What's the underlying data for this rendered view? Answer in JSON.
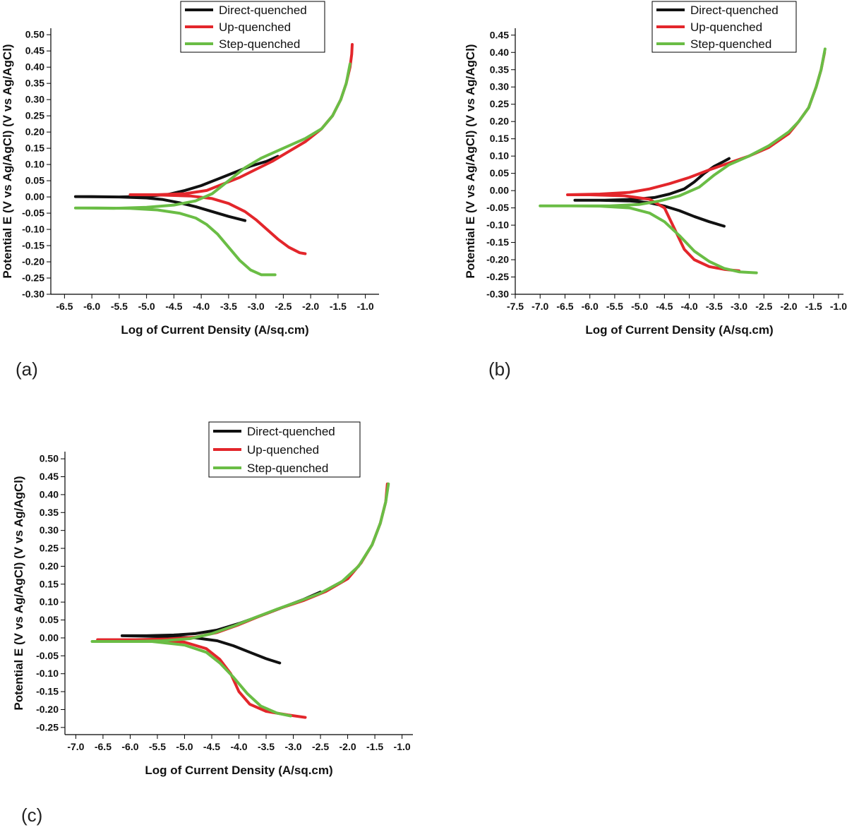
{
  "figure": {
    "panel_labels": [
      "(a)",
      "(b)",
      "(c)"
    ]
  },
  "colors": {
    "direct": "#111111",
    "up": "#e3262b",
    "step": "#6abd45"
  },
  "chart_data": [
    {
      "panel": "(a)",
      "type": "line",
      "xlabel": "Log of Current Density (A/sq.cm)",
      "ylabel": "Potential E (V vs Ag/AgCl) (V vs Ag/AgCl)",
      "xlim": [
        -6.75,
        -0.75
      ],
      "ylim": [
        -0.3,
        0.52
      ],
      "xticks": [
        -6.5,
        -6.0,
        -5.5,
        -5.0,
        -4.5,
        -4.0,
        -3.5,
        -3.0,
        -2.5,
        -2.0,
        -1.5,
        -1.0
      ],
      "yticks": [
        -0.3,
        -0.25,
        -0.2,
        -0.15,
        -0.1,
        -0.05,
        0.0,
        0.05,
        0.1,
        0.15,
        0.2,
        0.25,
        0.3,
        0.35,
        0.4,
        0.45,
        0.5
      ],
      "legend": [
        "Direct-quenched",
        "Up-quenched",
        "Step-quenched"
      ],
      "series": [
        {
          "name": "Direct-quenched",
          "color_key": "direct",
          "points": [
            [
              -3.2,
              -0.073
            ],
            [
              -3.5,
              -0.06
            ],
            [
              -3.8,
              -0.045
            ],
            [
              -4.1,
              -0.03
            ],
            [
              -4.4,
              -0.018
            ],
            [
              -4.7,
              -0.008
            ],
            [
              -5.0,
              -0.003
            ],
            [
              -5.5,
              0.0
            ],
            [
              -6.0,
              0.001
            ],
            [
              -6.3,
              0.001
            ],
            [
              -5.5,
              0.0
            ],
            [
              -5.0,
              0.002
            ],
            [
              -4.6,
              0.008
            ],
            [
              -4.3,
              0.02
            ],
            [
              -4.0,
              0.035
            ],
            [
              -3.7,
              0.055
            ],
            [
              -3.4,
              0.075
            ],
            [
              -3.1,
              0.095
            ],
            [
              -2.8,
              0.11
            ],
            [
              -2.6,
              0.125
            ]
          ]
        },
        {
          "name": "Up-quenched",
          "color_key": "up",
          "points": [
            [
              -2.1,
              -0.175
            ],
            [
              -2.2,
              -0.172
            ],
            [
              -2.4,
              -0.155
            ],
            [
              -2.6,
              -0.13
            ],
            [
              -2.8,
              -0.1
            ],
            [
              -3.0,
              -0.07
            ],
            [
              -3.2,
              -0.045
            ],
            [
              -3.5,
              -0.02
            ],
            [
              -3.8,
              -0.005
            ],
            [
              -4.2,
              0.003
            ],
            [
              -4.8,
              0.006
            ],
            [
              -5.3,
              0.007
            ],
            [
              -4.8,
              0.007
            ],
            [
              -4.3,
              0.01
            ],
            [
              -3.9,
              0.02
            ],
            [
              -3.6,
              0.04
            ],
            [
              -3.3,
              0.06
            ],
            [
              -3.0,
              0.085
            ],
            [
              -2.7,
              0.11
            ],
            [
              -2.4,
              0.14
            ],
            [
              -2.1,
              0.17
            ],
            [
              -1.8,
              0.21
            ],
            [
              -1.6,
              0.25
            ],
            [
              -1.45,
              0.3
            ],
            [
              -1.35,
              0.35
            ],
            [
              -1.28,
              0.4
            ],
            [
              -1.25,
              0.44
            ],
            [
              -1.24,
              0.47
            ]
          ]
        },
        {
          "name": "Step-quenched",
          "color_key": "step",
          "points": [
            [
              -2.65,
              -0.24
            ],
            [
              -2.9,
              -0.24
            ],
            [
              -3.1,
              -0.225
            ],
            [
              -3.3,
              -0.195
            ],
            [
              -3.5,
              -0.155
            ],
            [
              -3.7,
              -0.115
            ],
            [
              -3.9,
              -0.085
            ],
            [
              -4.1,
              -0.065
            ],
            [
              -4.4,
              -0.05
            ],
            [
              -4.8,
              -0.04
            ],
            [
              -5.3,
              -0.035
            ],
            [
              -5.9,
              -0.034
            ],
            [
              -6.3,
              -0.034
            ],
            [
              -5.6,
              -0.035
            ],
            [
              -5.0,
              -0.032
            ],
            [
              -4.5,
              -0.025
            ],
            [
              -4.1,
              -0.012
            ],
            [
              -3.8,
              0.01
            ],
            [
              -3.5,
              0.05
            ],
            [
              -3.2,
              0.09
            ],
            [
              -2.9,
              0.12
            ],
            [
              -2.5,
              0.15
            ],
            [
              -2.1,
              0.18
            ],
            [
              -1.8,
              0.21
            ],
            [
              -1.6,
              0.25
            ],
            [
              -1.45,
              0.3
            ],
            [
              -1.35,
              0.35
            ],
            [
              -1.28,
              0.41
            ]
          ]
        }
      ]
    },
    {
      "panel": "(b)",
      "type": "line",
      "xlabel": "Log of Current Density (A/sq.cm)",
      "ylabel": "Potential E (V vs Ag/AgCl) (V vs Ag/AgCl)",
      "xlim": [
        -7.5,
        -0.9
      ],
      "ylim": [
        -0.3,
        0.47
      ],
      "xticks": [
        -7.5,
        -7.0,
        -6.5,
        -6.0,
        -5.5,
        -5.0,
        -4.5,
        -4.0,
        -3.5,
        -3.0,
        -2.5,
        -2.0,
        -1.5,
        -1.0
      ],
      "yticks": [
        -0.3,
        -0.25,
        -0.2,
        -0.15,
        -0.1,
        -0.05,
        0.0,
        0.05,
        0.1,
        0.15,
        0.2,
        0.25,
        0.3,
        0.35,
        0.4,
        0.45
      ],
      "legend": [
        "Direct-quenched",
        "Up-quenched",
        "Step-quenched"
      ],
      "series": [
        {
          "name": "Direct-quenched",
          "color_key": "direct",
          "points": [
            [
              -3.3,
              -0.103
            ],
            [
              -3.6,
              -0.09
            ],
            [
              -3.9,
              -0.075
            ],
            [
              -4.2,
              -0.058
            ],
            [
              -4.5,
              -0.045
            ],
            [
              -4.8,
              -0.035
            ],
            [
              -5.2,
              -0.03
            ],
            [
              -5.8,
              -0.028
            ],
            [
              -6.3,
              -0.028
            ],
            [
              -5.7,
              -0.028
            ],
            [
              -5.1,
              -0.025
            ],
            [
              -4.7,
              -0.02
            ],
            [
              -4.4,
              -0.01
            ],
            [
              -4.1,
              0.005
            ],
            [
              -3.9,
              0.025
            ],
            [
              -3.7,
              0.05
            ],
            [
              -3.5,
              0.07
            ],
            [
              -3.3,
              0.085
            ],
            [
              -3.2,
              0.093
            ]
          ]
        },
        {
          "name": "Up-quenched",
          "color_key": "up",
          "points": [
            [
              -3.0,
              -0.232
            ],
            [
              -3.3,
              -0.228
            ],
            [
              -3.6,
              -0.22
            ],
            [
              -3.9,
              -0.2
            ],
            [
              -4.1,
              -0.17
            ],
            [
              -4.3,
              -0.11
            ],
            [
              -4.5,
              -0.05
            ],
            [
              -4.8,
              -0.025
            ],
            [
              -5.3,
              -0.015
            ],
            [
              -6.0,
              -0.012
            ],
            [
              -6.45,
              -0.012
            ],
            [
              -5.8,
              -0.01
            ],
            [
              -5.2,
              -0.005
            ],
            [
              -4.8,
              0.005
            ],
            [
              -4.4,
              0.02
            ],
            [
              -4.0,
              0.038
            ],
            [
              -3.6,
              0.06
            ],
            [
              -3.2,
              0.08
            ],
            [
              -2.8,
              0.1
            ],
            [
              -2.4,
              0.125
            ],
            [
              -2.0,
              0.165
            ],
            [
              -1.8,
              0.2
            ],
            [
              -1.6,
              0.24
            ],
            [
              -1.45,
              0.3
            ],
            [
              -1.35,
              0.35
            ],
            [
              -1.28,
              0.4
            ]
          ]
        },
        {
          "name": "Step-quenched",
          "color_key": "step",
          "points": [
            [
              -2.65,
              -0.238
            ],
            [
              -3.0,
              -0.235
            ],
            [
              -3.3,
              -0.225
            ],
            [
              -3.6,
              -0.205
            ],
            [
              -3.9,
              -0.175
            ],
            [
              -4.2,
              -0.13
            ],
            [
              -4.5,
              -0.09
            ],
            [
              -4.8,
              -0.065
            ],
            [
              -5.2,
              -0.05
            ],
            [
              -5.8,
              -0.045
            ],
            [
              -6.4,
              -0.044
            ],
            [
              -7.0,
              -0.044
            ],
            [
              -6.3,
              -0.044
            ],
            [
              -5.6,
              -0.044
            ],
            [
              -5.0,
              -0.04
            ],
            [
              -4.6,
              -0.03
            ],
            [
              -4.2,
              -0.015
            ],
            [
              -3.8,
              0.01
            ],
            [
              -3.5,
              0.045
            ],
            [
              -3.2,
              0.075
            ],
            [
              -2.8,
              0.1
            ],
            [
              -2.4,
              0.13
            ],
            [
              -2.0,
              0.17
            ],
            [
              -1.8,
              0.2
            ],
            [
              -1.6,
              0.24
            ],
            [
              -1.45,
              0.3
            ],
            [
              -1.35,
              0.35
            ],
            [
              -1.27,
              0.41
            ]
          ]
        }
      ]
    },
    {
      "panel": "(c)",
      "type": "line",
      "xlabel": "Log of Current Density (A/sq.cm)",
      "ylabel": "Potential E (V vs Ag/AgCl) (V vs Ag/AgCl)",
      "xlim": [
        -7.2,
        -0.8
      ],
      "ylim": [
        -0.27,
        0.52
      ],
      "xticks": [
        -7.0,
        -6.5,
        -6.0,
        -5.5,
        -5.0,
        -4.5,
        -4.0,
        -3.5,
        -3.0,
        -2.5,
        -2.0,
        -1.5,
        -1.0
      ],
      "yticks": [
        -0.25,
        -0.2,
        -0.15,
        -0.1,
        -0.05,
        0.0,
        0.05,
        0.1,
        0.15,
        0.2,
        0.25,
        0.3,
        0.35,
        0.4,
        0.45,
        0.5
      ],
      "legend": [
        "Direct-quenched",
        "Up-quenched",
        "Step-quenched"
      ],
      "series": [
        {
          "name": "Direct-quenched",
          "color_key": "direct",
          "points": [
            [
              -3.25,
              -0.07
            ],
            [
              -3.5,
              -0.058
            ],
            [
              -3.8,
              -0.04
            ],
            [
              -4.1,
              -0.022
            ],
            [
              -4.4,
              -0.008
            ],
            [
              -4.8,
              0.0
            ],
            [
              -5.3,
              0.003
            ],
            [
              -5.8,
              0.005
            ],
            [
              -6.15,
              0.006
            ],
            [
              -5.7,
              0.006
            ],
            [
              -5.2,
              0.008
            ],
            [
              -4.8,
              0.012
            ],
            [
              -4.4,
              0.022
            ],
            [
              -4.0,
              0.04
            ],
            [
              -3.6,
              0.062
            ],
            [
              -3.2,
              0.085
            ],
            [
              -2.8,
              0.108
            ],
            [
              -2.5,
              0.128
            ]
          ]
        },
        {
          "name": "Up-quenched",
          "color_key": "up",
          "points": [
            [
              -2.78,
              -0.222
            ],
            [
              -3.1,
              -0.215
            ],
            [
              -3.5,
              -0.205
            ],
            [
              -3.8,
              -0.185
            ],
            [
              -4.0,
              -0.15
            ],
            [
              -4.15,
              -0.1
            ],
            [
              -4.35,
              -0.06
            ],
            [
              -4.6,
              -0.03
            ],
            [
              -5.0,
              -0.012
            ],
            [
              -5.6,
              -0.005
            ],
            [
              -6.6,
              -0.005
            ],
            [
              -5.9,
              -0.005
            ],
            [
              -5.3,
              -0.003
            ],
            [
              -4.8,
              0.002
            ],
            [
              -4.4,
              0.015
            ],
            [
              -4.0,
              0.037
            ],
            [
              -3.6,
              0.062
            ],
            [
              -3.2,
              0.085
            ],
            [
              -2.8,
              0.105
            ],
            [
              -2.4,
              0.13
            ],
            [
              -2.0,
              0.165
            ],
            [
              -1.75,
              0.21
            ],
            [
              -1.55,
              0.26
            ],
            [
              -1.4,
              0.32
            ],
            [
              -1.3,
              0.38
            ],
            [
              -1.27,
              0.43
            ]
          ]
        },
        {
          "name": "Step-quenched",
          "color_key": "step",
          "points": [
            [
              -3.05,
              -0.218
            ],
            [
              -3.3,
              -0.21
            ],
            [
              -3.6,
              -0.19
            ],
            [
              -3.85,
              -0.155
            ],
            [
              -4.1,
              -0.11
            ],
            [
              -4.35,
              -0.07
            ],
            [
              -4.6,
              -0.04
            ],
            [
              -5.0,
              -0.02
            ],
            [
              -5.6,
              -0.01
            ],
            [
              -6.7,
              -0.01
            ],
            [
              -6.0,
              -0.01
            ],
            [
              -5.4,
              -0.008
            ],
            [
              -4.9,
              -0.002
            ],
            [
              -4.5,
              0.012
            ],
            [
              -4.1,
              0.033
            ],
            [
              -3.7,
              0.057
            ],
            [
              -3.3,
              0.08
            ],
            [
              -2.9,
              0.102
            ],
            [
              -2.5,
              0.125
            ],
            [
              -2.1,
              0.158
            ],
            [
              -1.8,
              0.2
            ],
            [
              -1.55,
              0.26
            ],
            [
              -1.4,
              0.32
            ],
            [
              -1.3,
              0.38
            ],
            [
              -1.25,
              0.43
            ]
          ]
        }
      ]
    }
  ]
}
